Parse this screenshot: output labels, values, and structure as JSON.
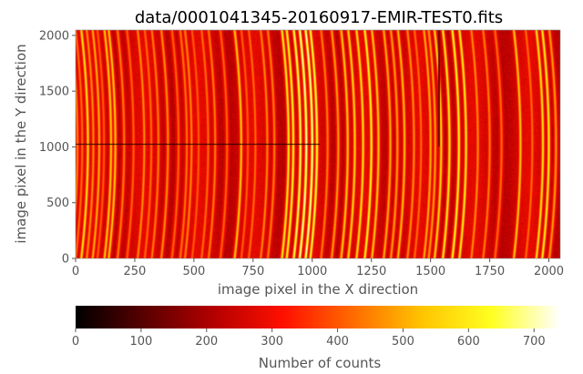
{
  "chart_data": {
    "type": "heatmap",
    "title": "data/0001041345-20160917-EMIR-TEST0.fits",
    "xlabel": "image pixel in the X direction",
    "ylabel": "image pixel in the Y direction",
    "xlim": [
      0,
      2048
    ],
    "ylim": [
      0,
      2048
    ],
    "xticks": [
      0,
      250,
      500,
      750,
      1000,
      1250,
      1500,
      1750,
      2000
    ],
    "yticks": [
      0,
      500,
      1000,
      1500,
      2000
    ],
    "colormap": "hot",
    "colorbar": {
      "label": "Number of counts",
      "range": [
        0,
        740
      ],
      "ticks": [
        0,
        100,
        200,
        300,
        400,
        500,
        600,
        700
      ],
      "orientation": "horizontal",
      "colors": [
        "#000000",
        "#5a0000",
        "#b40000",
        "#ff1000",
        "#ff6a00",
        "#ffc400",
        "#ffff20",
        "#ffffff"
      ]
    },
    "background_level": 250,
    "arc_lines": [
      {
        "x": 8,
        "level": 470
      },
      {
        "x": 28,
        "level": 440
      },
      {
        "x": 52,
        "level": 600
      },
      {
        "x": 75,
        "level": 480
      },
      {
        "x": 100,
        "level": 520
      },
      {
        "x": 120,
        "level": 420
      },
      {
        "x": 150,
        "level": 560
      },
      {
        "x": 168,
        "level": 560
      },
      {
        "x": 205,
        "level": 460
      },
      {
        "x": 245,
        "level": 430
      },
      {
        "x": 290,
        "level": 480
      },
      {
        "x": 320,
        "level": 440
      },
      {
        "x": 350,
        "level": 460
      },
      {
        "x": 390,
        "level": 480
      },
      {
        "x": 435,
        "level": 430
      },
      {
        "x": 470,
        "level": 450
      },
      {
        "x": 490,
        "level": 470
      },
      {
        "x": 520,
        "level": 420
      },
      {
        "x": 560,
        "level": 440
      },
      {
        "x": 590,
        "level": 460
      },
      {
        "x": 640,
        "level": 430
      },
      {
        "x": 700,
        "level": 560
      },
      {
        "x": 728,
        "level": 420
      },
      {
        "x": 760,
        "level": 440
      },
      {
        "x": 810,
        "level": 470
      },
      {
        "x": 840,
        "level": 460
      },
      {
        "x": 900,
        "level": 620
      },
      {
        "x": 920,
        "level": 640
      },
      {
        "x": 950,
        "level": 680
      },
      {
        "x": 975,
        "level": 720
      },
      {
        "x": 1000,
        "level": 720
      },
      {
        "x": 1020,
        "level": 660
      },
      {
        "x": 1065,
        "level": 460
      },
      {
        "x": 1110,
        "level": 500
      },
      {
        "x": 1150,
        "level": 560
      },
      {
        "x": 1180,
        "level": 580
      },
      {
        "x": 1215,
        "level": 600
      },
      {
        "x": 1250,
        "level": 640
      },
      {
        "x": 1280,
        "level": 560
      },
      {
        "x": 1330,
        "level": 520
      },
      {
        "x": 1360,
        "level": 500
      },
      {
        "x": 1390,
        "level": 540
      },
      {
        "x": 1430,
        "level": 480
      },
      {
        "x": 1460,
        "level": 440
      },
      {
        "x": 1500,
        "level": 520
      },
      {
        "x": 1520,
        "level": 500
      },
      {
        "x": 1545,
        "level": 580
      },
      {
        "x": 1580,
        "level": 620
      },
      {
        "x": 1620,
        "level": 640
      },
      {
        "x": 1650,
        "level": 620
      },
      {
        "x": 1700,
        "level": 480
      },
      {
        "x": 1750,
        "level": 460
      },
      {
        "x": 1800,
        "level": 440
      },
      {
        "x": 1880,
        "level": 560
      },
      {
        "x": 1930,
        "level": 440
      },
      {
        "x": 1975,
        "level": 600
      },
      {
        "x": 2000,
        "level": 620
      },
      {
        "x": 2030,
        "level": 500
      }
    ],
    "dark_features": [
      {
        "kind": "row",
        "y": 1024,
        "x_range": [
          0,
          1030
        ],
        "level": 40
      },
      {
        "kind": "column",
        "x": 1535,
        "y_range": [
          1000,
          2048
        ],
        "level": 60
      }
    ]
  }
}
